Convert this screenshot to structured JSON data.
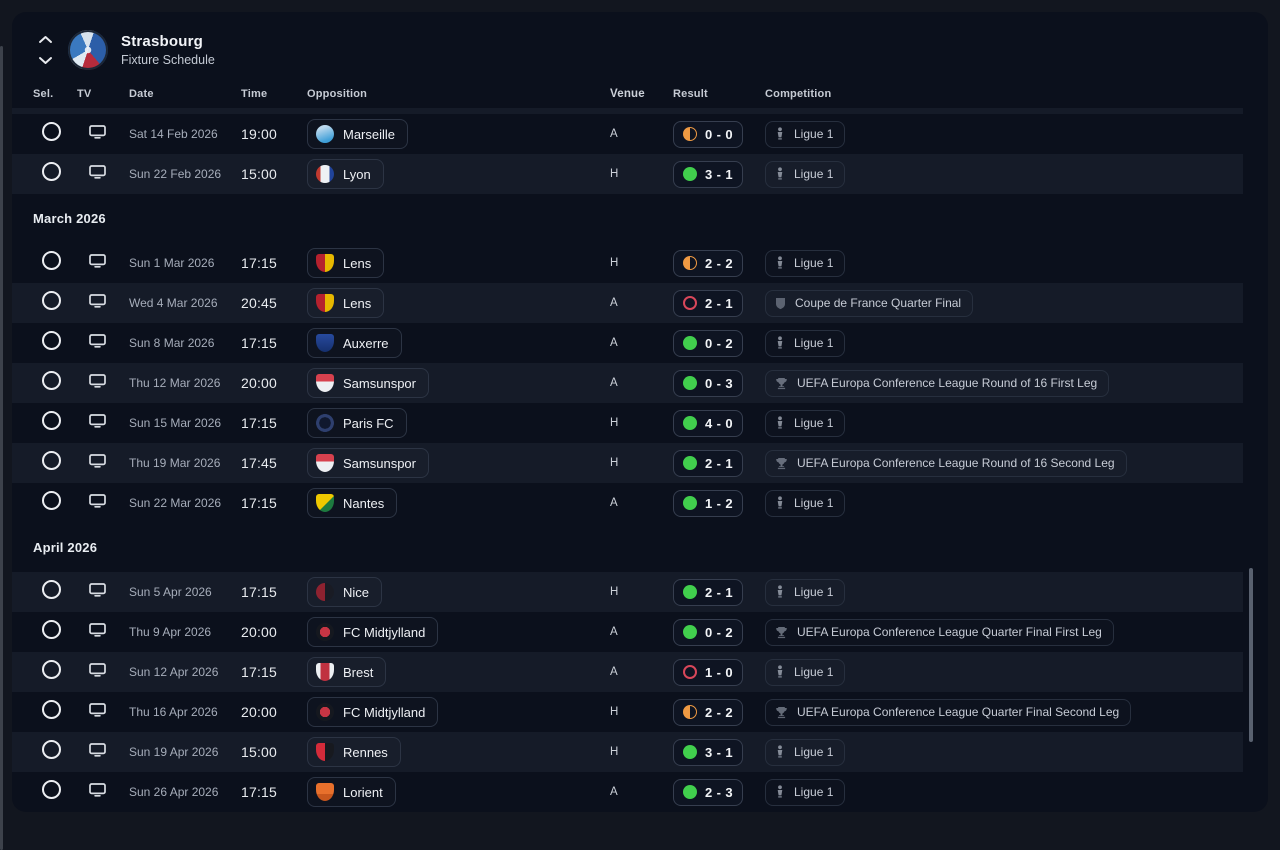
{
  "window": {
    "bg": "#12161f",
    "panel_bg": "#0b101c"
  },
  "header": {
    "title": "Strasbourg",
    "subtitle": "Fixture Schedule"
  },
  "columns": {
    "sel": "Sel.",
    "tv": "TV",
    "date": "Date",
    "time": "Time",
    "opposition": "Opposition",
    "venue": "Venue",
    "result": "Result",
    "competition": "Competition"
  },
  "colors": {
    "win": "#41cf4d",
    "draw": "#ef9a43",
    "loss": "#d8475a",
    "row_alt": "#151b28"
  },
  "sections": [
    {
      "label": "",
      "rows": [
        {
          "date": "Sat 14 Feb 2026",
          "time": "19:00",
          "opponent": "Marseille",
          "venue": "A",
          "outcome": "draw",
          "score": "0 - 0",
          "competition": "Ligue 1",
          "competition_icon": "ligue-1-icon",
          "badge": {
            "shape": "circle",
            "bg": "linear-gradient(160deg,#bcd9ee 20%,#3f9fd8 80%)"
          }
        },
        {
          "date": "Sun 22 Feb 2026",
          "time": "15:00",
          "opponent": "Lyon",
          "venue": "H",
          "outcome": "win",
          "score": "3 - 1",
          "competition": "Ligue 1",
          "competition_icon": "ligue-1-icon",
          "badge": {
            "shape": "circle",
            "bg": "linear-gradient(90deg,#c0392f 24%,#eef1f4 24% 76%,#20439a 76%)"
          }
        }
      ]
    },
    {
      "label": "March 2026",
      "rows": [
        {
          "date": "Sun 1 Mar 2026",
          "time": "17:15",
          "opponent": "Lens",
          "venue": "H",
          "outcome": "draw",
          "score": "2 - 2",
          "competition": "Ligue 1",
          "competition_icon": "ligue-1-icon",
          "badge": {
            "shape": "shield",
            "bg": "linear-gradient(90deg,#b5212e 50%,#e7b800 50%)"
          }
        },
        {
          "date": "Wed 4 Mar 2026",
          "time": "20:45",
          "opponent": "Lens",
          "venue": "A",
          "outcome": "loss",
          "score": "2 - 1",
          "competition": "Coupe de France Quarter Final",
          "competition_icon": "coupe-de-france-icon",
          "badge": {
            "shape": "shield",
            "bg": "linear-gradient(90deg,#b5212e 50%,#e7b800 50%)"
          }
        },
        {
          "date": "Sun 8 Mar 2026",
          "time": "17:15",
          "opponent": "Auxerre",
          "venue": "A",
          "outcome": "win",
          "score": "0 - 2",
          "competition": "Ligue 1",
          "competition_icon": "ligue-1-icon",
          "badge": {
            "shape": "shield",
            "bg": "linear-gradient(180deg,#274a9e,#16306e)"
          }
        },
        {
          "date": "Thu 12 Mar 2026",
          "time": "20:00",
          "opponent": "Samsunspor",
          "venue": "A",
          "outcome": "win",
          "score": "0 - 3",
          "competition": "UEFA Europa Conference League Round of 16  First Leg",
          "competition_icon": "uefa-conference-league-icon",
          "badge": {
            "shape": "shield",
            "bg": "linear-gradient(180deg,#d7414e 42%,#eef0f3 42%)"
          }
        },
        {
          "date": "Sun 15 Mar 2026",
          "time": "17:15",
          "opponent": "Paris FC",
          "venue": "H",
          "outcome": "win",
          "score": "4 - 0",
          "competition": "Ligue 1",
          "competition_icon": "ligue-1-icon",
          "badge": {
            "shape": "circle",
            "bg": "radial-gradient(circle at 50% 50%,#10182e 0 45%,#2e3f6e 46% 70%,#10182e 71%)"
          }
        },
        {
          "date": "Thu 19 Mar 2026",
          "time": "17:45",
          "opponent": "Samsunspor",
          "venue": "H",
          "outcome": "win",
          "score": "2 - 1",
          "competition": "UEFA Europa Conference League Round of 16  Second Leg",
          "competition_icon": "uefa-conference-league-icon",
          "badge": {
            "shape": "shield",
            "bg": "linear-gradient(180deg,#d7414e 42%,#eef0f3 42%)"
          }
        },
        {
          "date": "Sun 22 Mar 2026",
          "time": "17:15",
          "opponent": "Nantes",
          "venue": "A",
          "outcome": "win",
          "score": "1 - 2",
          "competition": "Ligue 1",
          "competition_icon": "ligue-1-icon",
          "badge": {
            "shape": "shield",
            "bg": "linear-gradient(135deg,#eec800 55%,#1d7a3f 56%)"
          }
        }
      ]
    },
    {
      "label": "April 2026",
      "rows": [
        {
          "date": "Sun 5 Apr 2026",
          "time": "17:15",
          "opponent": "Nice",
          "venue": "H",
          "outcome": "win",
          "score": "2 - 1",
          "competition": "Ligue 1",
          "competition_icon": "ligue-1-icon",
          "badge": {
            "shape": "circle",
            "bg": "linear-gradient(90deg,#8e2230 50%,#191b24 50%)"
          }
        },
        {
          "date": "Thu 9 Apr 2026",
          "time": "20:00",
          "opponent": "FC Midtjylland",
          "venue": "A",
          "outcome": "win",
          "score": "0 - 2",
          "competition": "UEFA Europa Conference League Quarter Final First Leg",
          "competition_icon": "uefa-conference-league-icon",
          "badge": {
            "shape": "circle",
            "bg": "radial-gradient(circle at 50% 50%,#c73544 0 40%,#15181f 41%)"
          }
        },
        {
          "date": "Sun 12 Apr 2026",
          "time": "17:15",
          "opponent": "Brest",
          "venue": "A",
          "outcome": "loss",
          "score": "1 - 0",
          "competition": "Ligue 1",
          "competition_icon": "ligue-1-icon",
          "badge": {
            "shape": "shield",
            "bg": "linear-gradient(90deg,#edf0f3 26%,#c03140 26% 74%,#edf0f3 74%)"
          }
        },
        {
          "date": "Thu 16 Apr 2026",
          "time": "20:00",
          "opponent": "FC Midtjylland",
          "venue": "H",
          "outcome": "draw",
          "score": "2 - 2",
          "competition": "UEFA Europa Conference League Quarter Final Second Leg",
          "competition_icon": "uefa-conference-league-icon",
          "badge": {
            "shape": "circle",
            "bg": "radial-gradient(circle at 50% 50%,#c73544 0 40%,#15181f 41%)"
          }
        },
        {
          "date": "Sun 19 Apr 2026",
          "time": "15:00",
          "opponent": "Rennes",
          "venue": "H",
          "outcome": "win",
          "score": "3 - 1",
          "competition": "Ligue 1",
          "competition_icon": "ligue-1-icon",
          "badge": {
            "shape": "shield",
            "bg": "linear-gradient(90deg,#d42b3a 50%,#17191f 50%)"
          }
        },
        {
          "date": "Sun 26 Apr 2026",
          "time": "17:15",
          "opponent": "Lorient",
          "venue": "A",
          "outcome": "win",
          "score": "2 - 3",
          "competition": "Ligue 1",
          "competition_icon": "ligue-1-icon",
          "badge": {
            "shape": "shield",
            "bg": "linear-gradient(180deg,#e8702c 60%,#c9571d 60%)"
          }
        }
      ]
    }
  ]
}
